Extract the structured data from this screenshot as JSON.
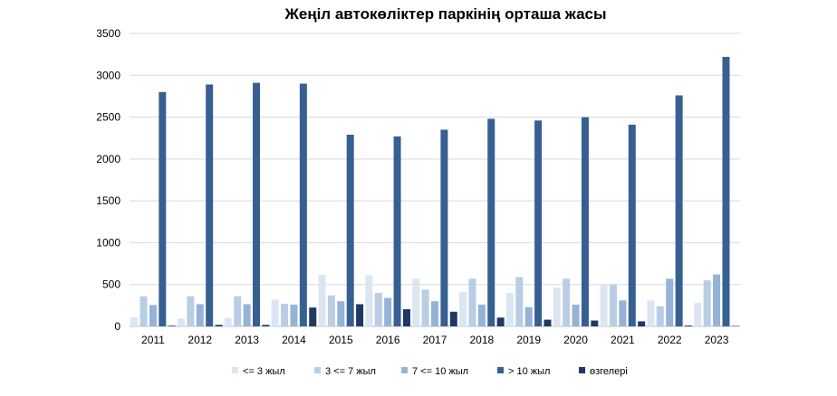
{
  "chart_data": {
    "type": "bar",
    "title": "Жеңіл автокөліктер паркінің орташа жасы",
    "xlabel": "",
    "ylabel": "",
    "ylim": [
      0,
      3500
    ],
    "yticks": [
      0,
      500,
      1000,
      1500,
      2000,
      2500,
      3000,
      3500
    ],
    "grid": true,
    "legend_position": "bottom",
    "categories": [
      "2011",
      "2012",
      "2013",
      "2014",
      "2015",
      "2016",
      "2017",
      "2018",
      "2019",
      "2020",
      "2021",
      "2022",
      "2023"
    ],
    "series": [
      {
        "name": "<= 3 жыл",
        "color": "#dce6f2",
        "values": [
          110,
          95,
          100,
          320,
          615,
          610,
          570,
          410,
          400,
          460,
          510,
          310,
          280
        ]
      },
      {
        "name": "3 <= 7 жыл",
        "color": "#b9cde5",
        "values": [
          360,
          360,
          360,
          270,
          370,
          400,
          440,
          570,
          590,
          570,
          500,
          240,
          550
        ]
      },
      {
        "name": "7 <= 10 жыл",
        "color": "#95b3d7",
        "values": [
          255,
          265,
          265,
          260,
          300,
          340,
          300,
          260,
          230,
          260,
          310,
          570,
          620
        ]
      },
      {
        "name": "> 10 жыл",
        "color": "#376092",
        "values": [
          2800,
          2890,
          2910,
          2900,
          2290,
          2270,
          2350,
          2480,
          2460,
          2500,
          2410,
          2760,
          3220
        ]
      },
      {
        "name": "өзгелері",
        "color": "#1f3864",
        "values": [
          8,
          18,
          18,
          225,
          265,
          205,
          175,
          105,
          80,
          70,
          60,
          10,
          5
        ]
      }
    ]
  }
}
